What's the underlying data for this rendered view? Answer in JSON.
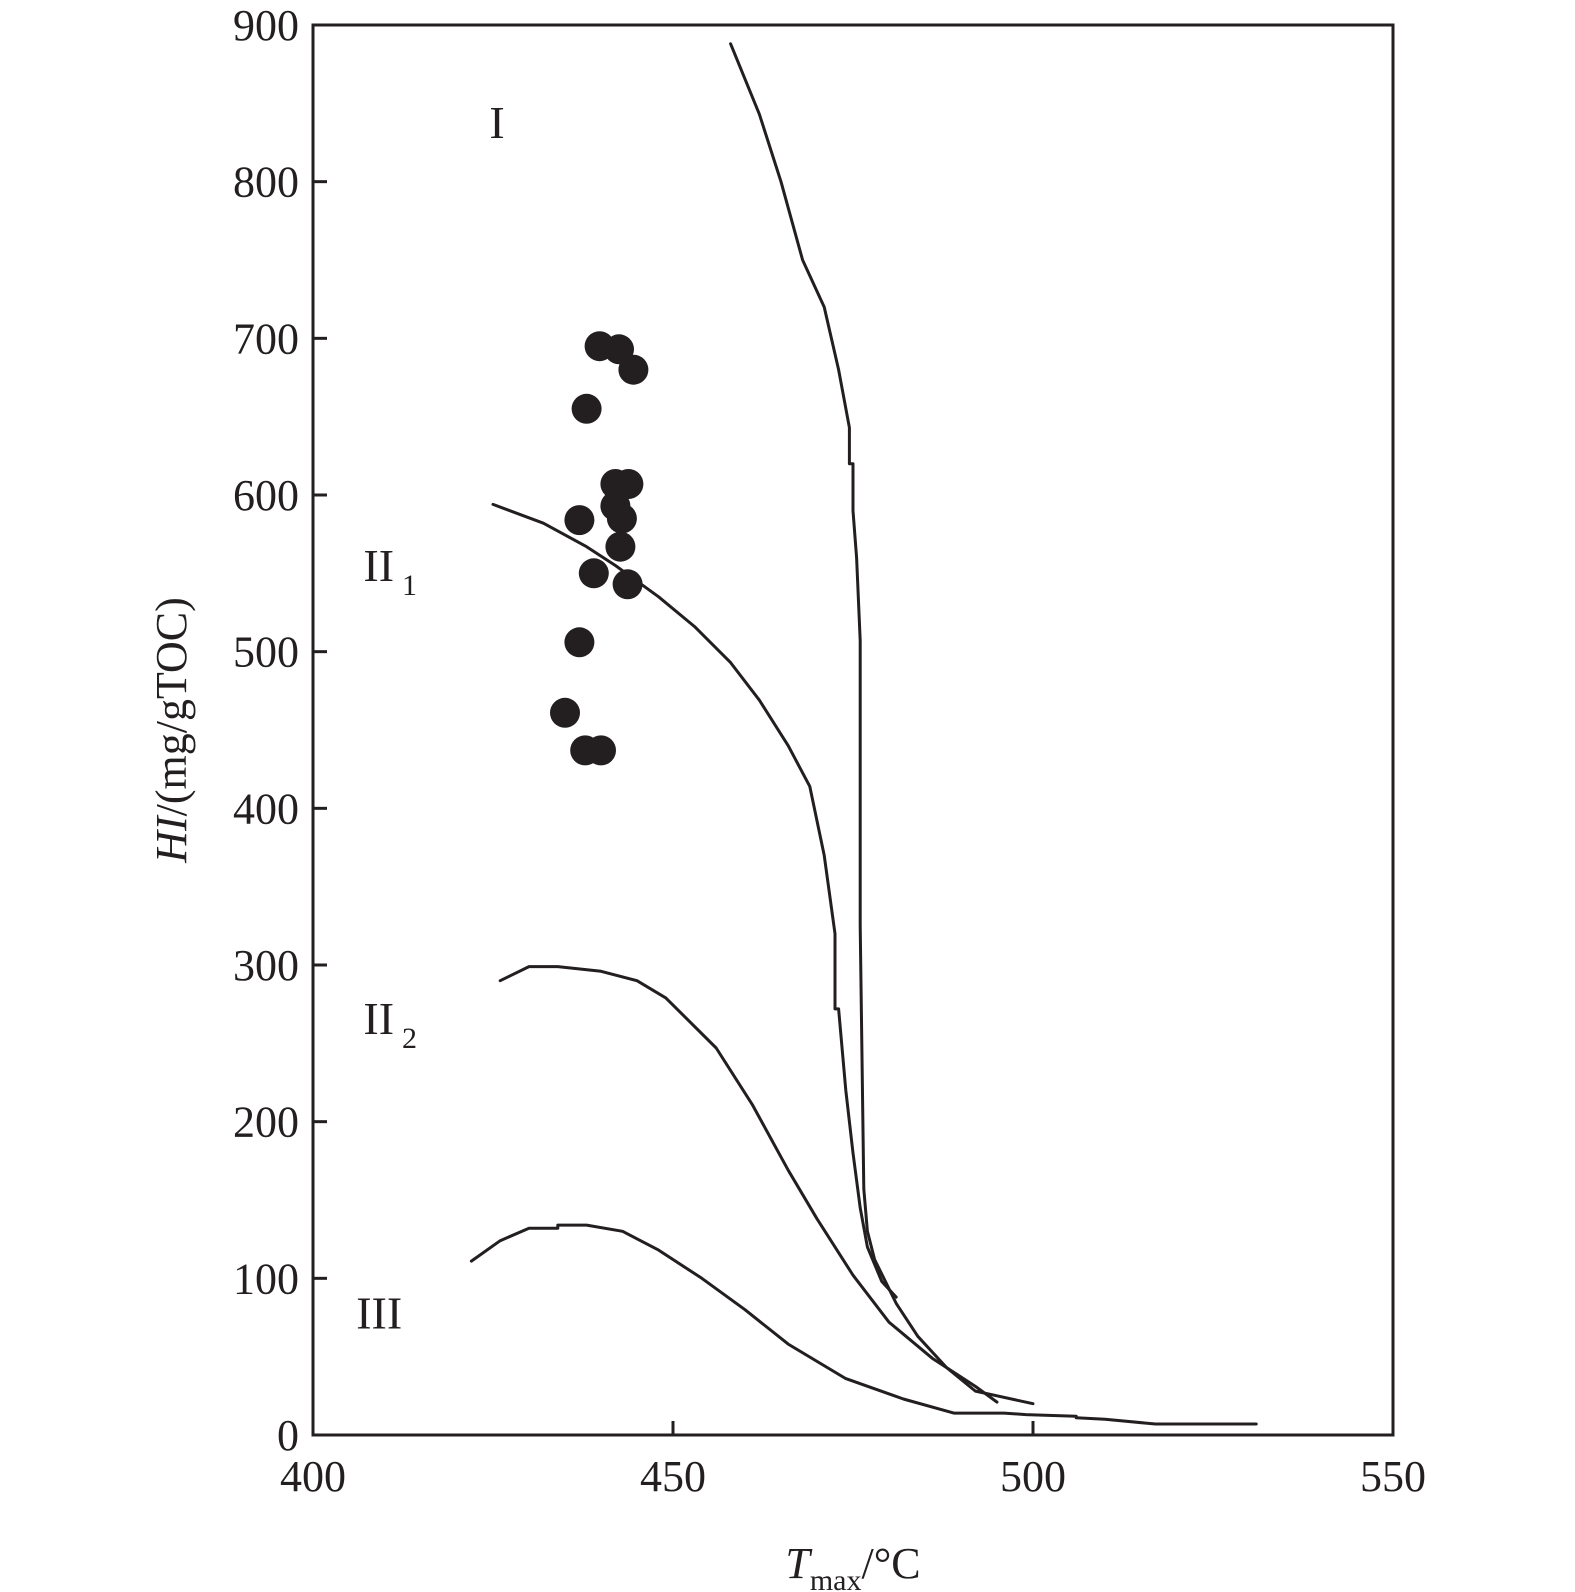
{
  "chart_data": {
    "type": "scatter",
    "title": "",
    "xlabel": {
      "main": "T",
      "sub": "max",
      "unit": "/°C"
    },
    "ylabel": {
      "main": "HI",
      "unit": "/(mg/gTOC)"
    },
    "xlim": [
      400,
      550
    ],
    "ylim": [
      0,
      900
    ],
    "x_ticks": [
      400,
      450,
      500,
      550
    ],
    "y_ticks": [
      0,
      100,
      200,
      300,
      400,
      500,
      600,
      700,
      800,
      900
    ],
    "grid": false,
    "points": [
      {
        "x": 439.8,
        "y": 695
      },
      {
        "x": 442.5,
        "y": 693
      },
      {
        "x": 444.5,
        "y": 680
      },
      {
        "x": 438.0,
        "y": 655
      },
      {
        "x": 437.0,
        "y": 584
      },
      {
        "x": 442.0,
        "y": 607
      },
      {
        "x": 443.8,
        "y": 607
      },
      {
        "x": 442.0,
        "y": 593
      },
      {
        "x": 442.9,
        "y": 585
      },
      {
        "x": 442.7,
        "y": 567
      },
      {
        "x": 439.0,
        "y": 550
      },
      {
        "x": 443.7,
        "y": 543
      },
      {
        "x": 437.0,
        "y": 506
      },
      {
        "x": 435.0,
        "y": 461
      },
      {
        "x": 437.8,
        "y": 437
      },
      {
        "x": 440.0,
        "y": 437
      }
    ],
    "curves": [
      {
        "id": "type-I",
        "points": [
          [
            458,
            888
          ],
          [
            462,
            843
          ],
          [
            465,
            800
          ],
          [
            468,
            750
          ],
          [
            471,
            720
          ],
          [
            473,
            680
          ],
          [
            474.5,
            643
          ],
          [
            474.5,
            620
          ],
          [
            475,
            620
          ],
          [
            475,
            590
          ],
          [
            475.5,
            560
          ],
          [
            476,
            507
          ],
          [
            476,
            325
          ],
          [
            476.5,
            157
          ],
          [
            477,
            130
          ],
          [
            478,
            112
          ],
          [
            481,
            84
          ],
          [
            484,
            63
          ],
          [
            488,
            43
          ],
          [
            492,
            28
          ],
          [
            500,
            20
          ]
        ]
      },
      {
        "id": "type-II1",
        "points": [
          [
            425,
            594
          ],
          [
            432,
            582
          ],
          [
            438,
            567
          ],
          [
            442,
            555
          ],
          [
            448,
            535
          ],
          [
            453,
            516
          ],
          [
            458,
            493
          ],
          [
            462,
            469
          ],
          [
            466,
            440
          ],
          [
            469,
            414
          ],
          [
            471,
            370
          ],
          [
            472.5,
            320
          ],
          [
            472.5,
            272
          ],
          [
            473,
            272
          ],
          [
            474,
            220
          ],
          [
            475,
            180
          ],
          [
            476,
            145
          ],
          [
            477,
            120
          ],
          [
            479,
            98
          ],
          [
            481,
            88
          ]
        ]
      },
      {
        "id": "type-II2",
        "points": [
          [
            426,
            290
          ],
          [
            430,
            299
          ],
          [
            434,
            299
          ],
          [
            440,
            296
          ],
          [
            445,
            290
          ],
          [
            449,
            279
          ],
          [
            456,
            247
          ],
          [
            461,
            211
          ],
          [
            466,
            169
          ],
          [
            470,
            138
          ],
          [
            475,
            102
          ],
          [
            480,
            72
          ],
          [
            486,
            49
          ],
          [
            492,
            31
          ],
          [
            495,
            21
          ]
        ]
      },
      {
        "id": "type-III",
        "points": [
          [
            422,
            111
          ],
          [
            426,
            124
          ],
          [
            430,
            132
          ],
          [
            434,
            132
          ],
          [
            434,
            134
          ],
          [
            438,
            134
          ],
          [
            443,
            130
          ],
          [
            448,
            118
          ],
          [
            454,
            100
          ],
          [
            460,
            80
          ],
          [
            466,
            58
          ],
          [
            474,
            36
          ],
          [
            482,
            23
          ],
          [
            489,
            14
          ],
          [
            496,
            14
          ],
          [
            499,
            13
          ],
          [
            506,
            12
          ],
          [
            506,
            11
          ],
          [
            510,
            10
          ],
          [
            517,
            7
          ],
          [
            531,
            7
          ]
        ]
      }
    ],
    "region_labels": [
      {
        "text": "I",
        "sub": "",
        "x": 424.5,
        "y": 828
      },
      {
        "text": "II",
        "sub": "1",
        "x": 407,
        "y": 545
      },
      {
        "text": "II",
        "sub": "2",
        "x": 407,
        "y": 256
      },
      {
        "text": "III",
        "sub": "",
        "x": 406,
        "y": 68
      }
    ]
  }
}
